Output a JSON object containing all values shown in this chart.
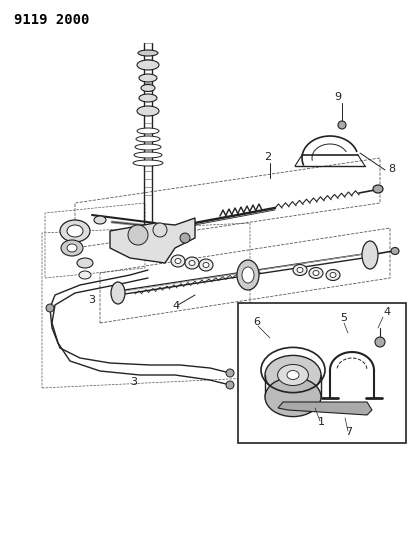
{
  "title": "9119 2000",
  "bg_color": "#ffffff",
  "fig_width": 4.11,
  "fig_height": 5.33,
  "dpi": 100,
  "label_fontsize": 8
}
